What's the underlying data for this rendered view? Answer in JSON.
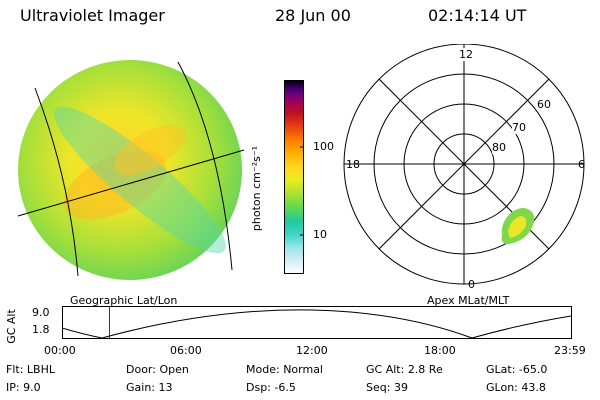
{
  "header": {
    "title": "Ultraviolet Imager",
    "date": "28 Jun 00",
    "time": "02:14:14 UT"
  },
  "colorbar": {
    "label": "photon cm⁻²s⁻¹",
    "ticks": [
      "100",
      "10"
    ],
    "scale": "log",
    "colors": [
      "#ffffff",
      "#d8eef6",
      "#9fe6ee",
      "#40d6c6",
      "#20c8a0",
      "#60d850",
      "#a8e030",
      "#e8ec20",
      "#ffd820",
      "#ffb000",
      "#ff8000",
      "#e84010",
      "#c01020",
      "#a00060",
      "#600080",
      "#200040",
      "#000000"
    ]
  },
  "left_panel": {
    "label": "Geographic Lat/Lon"
  },
  "right_panel": {
    "label": "Apex MLat/MLT",
    "mlt_labels": [
      "12",
      "18",
      "6",
      "0"
    ],
    "lat_labels": [
      "60",
      "70",
      "80"
    ]
  },
  "altitude_plot": {
    "ylabel": "GC Alt",
    "yticks": [
      "9.0",
      "1.8"
    ],
    "xticks": [
      "00:00",
      "06:00",
      "12:00",
      "18:00",
      "23:59"
    ],
    "marker_time_hours": 2.24
  },
  "info": {
    "row1": [
      {
        "label": "Flt:",
        "value": "LBHL"
      },
      {
        "label": "Door:",
        "value": "Open"
      },
      {
        "label": "Mode:",
        "value": "Normal"
      },
      {
        "label": "GC Alt:",
        "value": "2.8 Re"
      },
      {
        "label": "GLat:",
        "value": "-65.0"
      }
    ],
    "row2": [
      {
        "label": "IP:",
        "value": "9.0"
      },
      {
        "label": "Gain:",
        "value": "13"
      },
      {
        "label": "Dsp:",
        "value": "-6.5"
      },
      {
        "label": "Seq:",
        "value": "39"
      },
      {
        "label": "GLon:",
        "value": "43.8"
      }
    ]
  }
}
